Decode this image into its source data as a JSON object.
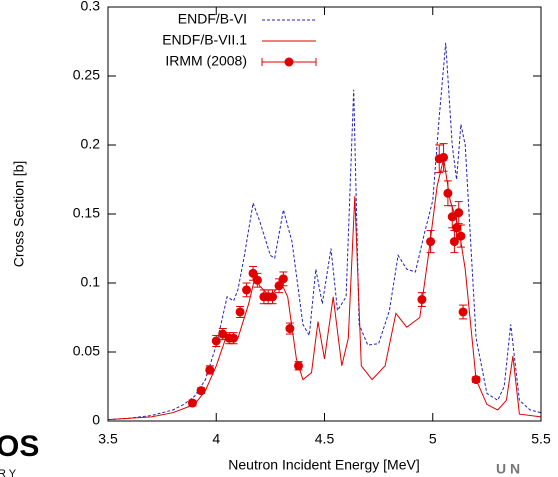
{
  "chart_data": {
    "type": "line",
    "xlabel": "Neutron Incident Energy [MeV]",
    "ylabel": "Cross Section [b]",
    "xlim": [
      3.5,
      5.5
    ],
    "xticks": [
      3.5,
      4,
      4.5,
      5,
      5.5
    ],
    "ylim": [
      0,
      0.3
    ],
    "yticks": [
      0,
      0.05,
      0.1,
      0.15,
      0.2,
      0.25,
      0.3
    ],
    "legend": "top-left",
    "series": [
      {
        "name": "ENDF/B-VI",
        "color": "#2020c0",
        "style": "dashed",
        "x": [
          3.5,
          3.6,
          3.7,
          3.8,
          3.85,
          3.9,
          3.95,
          4.0,
          4.05,
          4.08,
          4.1,
          4.13,
          4.17,
          4.2,
          4.25,
          4.27,
          4.31,
          4.35,
          4.4,
          4.43,
          4.46,
          4.49,
          4.53,
          4.56,
          4.6,
          4.635,
          4.66,
          4.7,
          4.75,
          4.8,
          4.84,
          4.88,
          4.92,
          4.96,
          5.0,
          5.03,
          5.06,
          5.09,
          5.11,
          5.13,
          5.15,
          5.2,
          5.25,
          5.3,
          5.33,
          5.36,
          5.4,
          5.45,
          5.5
        ],
        "values": [
          0.001,
          0.002,
          0.004,
          0.008,
          0.012,
          0.018,
          0.03,
          0.055,
          0.09,
          0.087,
          0.095,
          0.12,
          0.158,
          0.145,
          0.12,
          0.118,
          0.153,
          0.13,
          0.07,
          0.062,
          0.11,
          0.085,
          0.125,
          0.08,
          0.09,
          0.24,
          0.07,
          0.055,
          0.056,
          0.08,
          0.12,
          0.11,
          0.108,
          0.135,
          0.16,
          0.22,
          0.274,
          0.2,
          0.175,
          0.215,
          0.2,
          0.06,
          0.02,
          0.015,
          0.025,
          0.07,
          0.015,
          0.008,
          0.006
        ]
      },
      {
        "name": "ENDF/B-VII.1",
        "color": "#e00000",
        "style": "solid",
        "x": [
          3.5,
          3.7,
          3.8,
          3.9,
          3.95,
          4.0,
          4.05,
          4.1,
          4.15,
          4.18,
          4.2,
          4.25,
          4.3,
          4.33,
          4.37,
          4.4,
          4.44,
          4.47,
          4.5,
          4.54,
          4.58,
          4.61,
          4.64,
          4.67,
          4.72,
          4.78,
          4.83,
          4.88,
          4.94,
          4.98,
          5.02,
          5.05,
          5.08,
          5.12,
          5.15,
          5.2,
          5.25,
          5.3,
          5.34,
          5.37,
          5.4,
          5.5
        ],
        "values": [
          0.001,
          0.003,
          0.006,
          0.012,
          0.022,
          0.04,
          0.063,
          0.06,
          0.085,
          0.105,
          0.098,
          0.09,
          0.1,
          0.09,
          0.045,
          0.03,
          0.035,
          0.072,
          0.045,
          0.09,
          0.04,
          0.06,
          0.163,
          0.04,
          0.03,
          0.04,
          0.078,
          0.068,
          0.075,
          0.12,
          0.17,
          0.19,
          0.16,
          0.14,
          0.11,
          0.03,
          0.012,
          0.008,
          0.015,
          0.047,
          0.005,
          0.003
        ]
      },
      {
        "name": "IRMM (2008)",
        "color": "#e00000",
        "style": "points",
        "x": [
          3.89,
          3.93,
          3.97,
          4.0,
          4.03,
          4.06,
          4.08,
          4.11,
          4.14,
          4.17,
          4.19,
          4.22,
          4.24,
          4.26,
          4.29,
          4.31,
          4.34,
          4.38,
          4.95,
          4.99,
          5.03,
          5.05,
          5.07,
          5.09,
          5.1,
          5.11,
          5.12,
          5.13,
          5.14,
          5.2
        ],
        "values": [
          0.013,
          0.022,
          0.037,
          0.058,
          0.063,
          0.06,
          0.06,
          0.079,
          0.095,
          0.107,
          0.102,
          0.09,
          0.09,
          0.09,
          0.098,
          0.103,
          0.067,
          0.04,
          0.088,
          0.13,
          0.19,
          0.191,
          0.165,
          0.148,
          0.13,
          0.14,
          0.151,
          0.134,
          0.079,
          0.03
        ],
        "errors": [
          0.002,
          0.002,
          0.003,
          0.004,
          0.004,
          0.004,
          0.004,
          0.004,
          0.005,
          0.005,
          0.005,
          0.005,
          0.005,
          0.005,
          0.005,
          0.005,
          0.004,
          0.003,
          0.005,
          0.008,
          0.01,
          0.01,
          0.009,
          0.008,
          0.008,
          0.008,
          0.008,
          0.008,
          0.005,
          0.002
        ]
      }
    ]
  },
  "fragments": {
    "left_top": "OS",
    "left_bottom": "RY",
    "right": "U N"
  }
}
